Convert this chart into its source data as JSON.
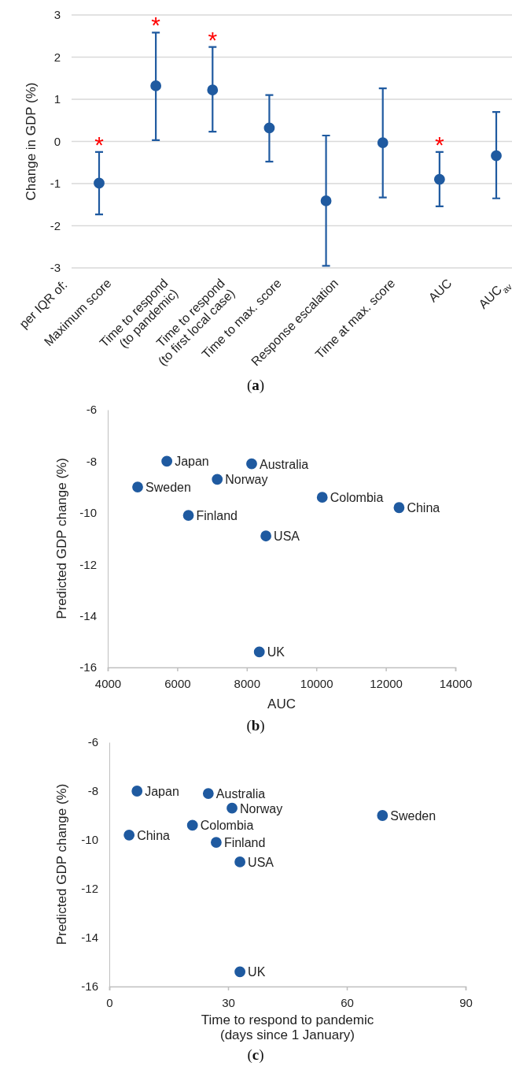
{
  "chart_data": [
    {
      "type": "scatter",
      "ylabel": "Change in GDP (%)",
      "categories": [
        "Maximum score",
        "Time to respond\n(to pandemic)",
        "Time to respond\n(to first local case)",
        "Time to max. score",
        "Response escalation",
        "Time at max. score",
        "AUC",
        "AUC$_{av}$"
      ],
      "values": [
        -0.99,
        1.32,
        1.22,
        0.32,
        -1.41,
        -0.03,
        -0.9,
        -0.34
      ],
      "errors": [
        [
          -1.73,
          -0.25
        ],
        [
          0.03,
          2.58
        ],
        [
          0.23,
          2.24
        ],
        [
          -0.48,
          1.1
        ],
        [
          -2.95,
          0.14
        ],
        [
          -1.33,
          1.26
        ],
        [
          -1.54,
          -0.25
        ],
        [
          -1.35,
          0.7
        ]
      ],
      "color": "#1f5aa0",
      "marker": "circle",
      "ylim": [
        -3,
        3
      ],
      "yticks": [
        -3,
        -2,
        -1,
        0,
        1,
        2,
        3
      ],
      "grid": "y",
      "value_labels": [
        "*",
        "*",
        "*",
        null,
        null,
        null,
        "*",
        null
      ],
      "annotations": [
        "per IQR of:",
        "(a)"
      ]
    },
    {
      "type": "scatter",
      "xlabel": "AUC",
      "ylabel": "Predicted GDP change (%)",
      "xlim": [
        4000,
        14000
      ],
      "xticks": [
        4000,
        6000,
        8000,
        10000,
        12000,
        14000
      ],
      "ylim": [
        -16,
        -6
      ],
      "yticks": [
        -16,
        -14,
        -12,
        -10,
        -8,
        -6
      ],
      "marker": "circle",
      "legend": false,
      "annotations": [
        "(b)"
      ],
      "series": [
        {
          "name": "Japan",
          "color": "#1f5aa0",
          "x": [
            5700
          ],
          "values": [
            -8.0
          ]
        },
        {
          "name": "Australia",
          "color": "#1f5aa0",
          "x": [
            8140
          ],
          "values": [
            -8.1
          ]
        },
        {
          "name": "Norway",
          "color": "#1f5aa0",
          "x": [
            7150
          ],
          "values": [
            -8.7
          ]
        },
        {
          "name": "Sweden",
          "color": "#1f5aa0",
          "x": [
            4860
          ],
          "values": [
            -9.0
          ]
        },
        {
          "name": "Colombia",
          "color": "#1f5aa0",
          "x": [
            10170
          ],
          "values": [
            -9.4
          ]
        },
        {
          "name": "China",
          "color": "#1f5aa0",
          "x": [
            12380
          ],
          "values": [
            -9.8
          ]
        },
        {
          "name": "Finland",
          "color": "#1f5aa0",
          "x": [
            6320
          ],
          "values": [
            -10.1
          ]
        },
        {
          "name": "USA",
          "color": "#1f5aa0",
          "x": [
            8550
          ],
          "values": [
            -10.9
          ]
        },
        {
          "name": "UK",
          "color": "#1f5aa0",
          "x": [
            8360
          ],
          "values": [
            -15.4
          ]
        }
      ]
    },
    {
      "type": "scatter",
      "xlabel": "Time to respond to pandemic\n(days since 1 January)",
      "ylabel": "Predicted GDP change (%)",
      "xlim": [
        0,
        90
      ],
      "xticks": [
        0,
        30,
        60,
        90
      ],
      "ylim": [
        -16,
        -6
      ],
      "yticks": [
        -16,
        -14,
        -12,
        -10,
        -8,
        -6
      ],
      "marker": "circle",
      "legend": false,
      "annotations": [
        "(c)"
      ],
      "series": [
        {
          "name": "Japan",
          "color": "#1f5aa0",
          "x": [
            7
          ],
          "values": [
            -8.0
          ]
        },
        {
          "name": "Australia",
          "color": "#1f5aa0",
          "x": [
            25
          ],
          "values": [
            -8.1
          ]
        },
        {
          "name": "Norway",
          "color": "#1f5aa0",
          "x": [
            31
          ],
          "values": [
            -8.7
          ]
        },
        {
          "name": "Sweden",
          "color": "#1f5aa0",
          "x": [
            69
          ],
          "values": [
            -9.0
          ]
        },
        {
          "name": "Colombia",
          "color": "#1f5aa0",
          "x": [
            21
          ],
          "values": [
            -9.4
          ]
        },
        {
          "name": "China",
          "color": "#1f5aa0",
          "x": [
            5
          ],
          "values": [
            -9.8
          ]
        },
        {
          "name": "Finland",
          "color": "#1f5aa0",
          "x": [
            27
          ],
          "values": [
            -10.1
          ]
        },
        {
          "name": "USA",
          "color": "#1f5aa0",
          "x": [
            33
          ],
          "values": [
            -10.9
          ]
        },
        {
          "name": "UK",
          "color": "#1f5aa0",
          "x": [
            33
          ],
          "values": [
            -15.4
          ]
        }
      ]
    }
  ]
}
